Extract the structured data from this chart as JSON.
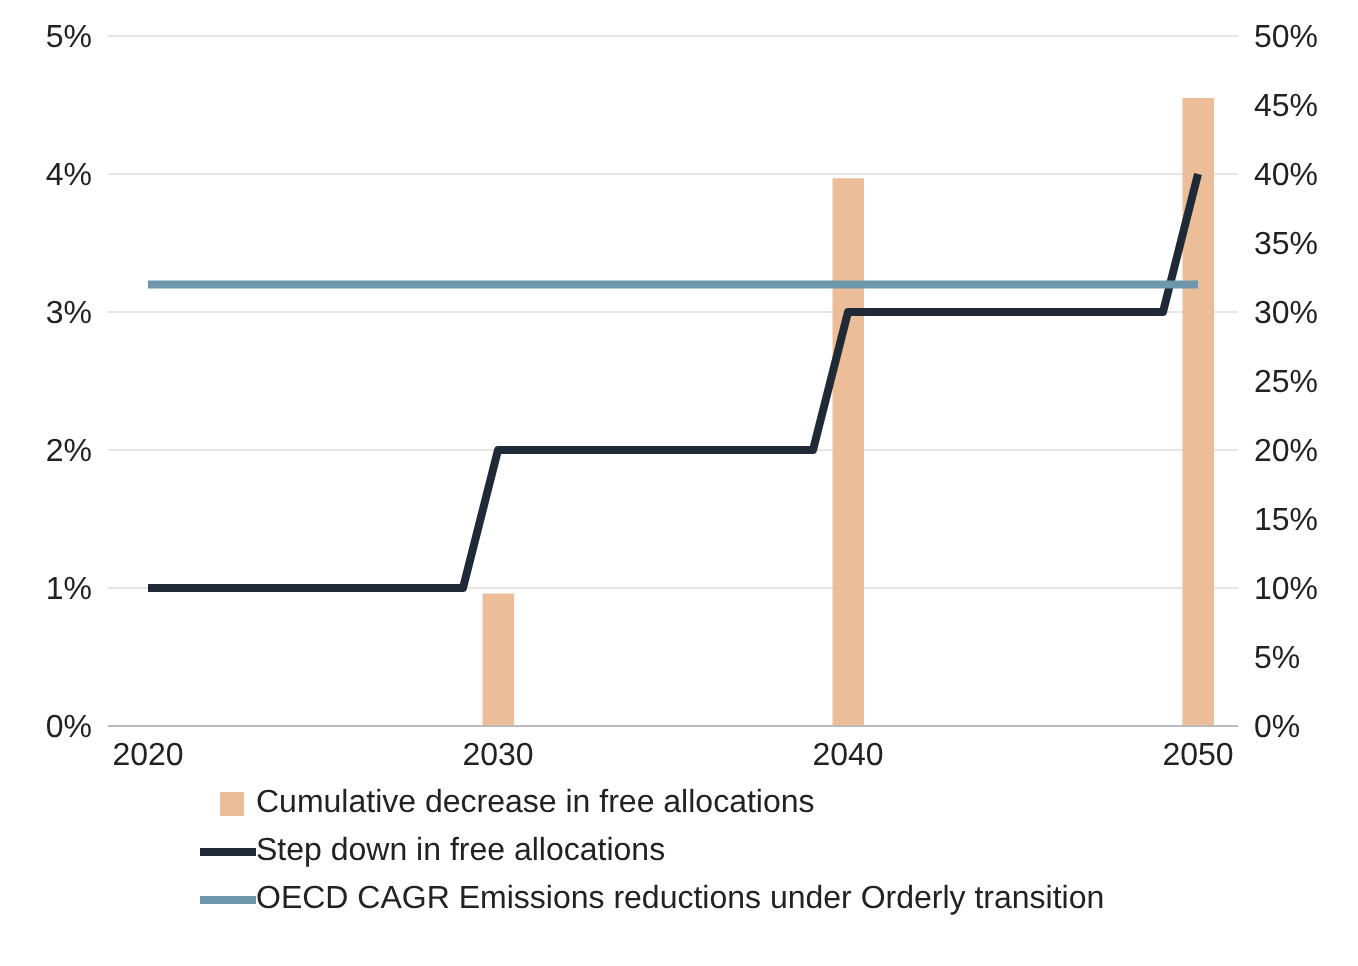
{
  "chart_data": {
    "type": "line",
    "xlim": [
      2020,
      2050
    ],
    "xticks": [
      2020,
      2030,
      2040,
      2050
    ],
    "ylim": [
      0,
      5
    ],
    "yticks": [
      {
        "value": 0,
        "label": "0%"
      },
      {
        "value": 1,
        "label": "1%"
      },
      {
        "value": 2,
        "label": "2%"
      },
      {
        "value": 3,
        "label": "3%"
      },
      {
        "value": 4,
        "label": "4%"
      },
      {
        "value": 5,
        "label": "5%"
      }
    ],
    "y2lim": [
      0,
      50
    ],
    "y2ticks": [
      {
        "value": 0,
        "label": "0%"
      },
      {
        "value": 5,
        "label": "5%"
      },
      {
        "value": 10,
        "label": "10%"
      },
      {
        "value": 15,
        "label": "15%"
      },
      {
        "value": 20,
        "label": "20%"
      },
      {
        "value": 25,
        "label": "25%"
      },
      {
        "value": 30,
        "label": "30%"
      },
      {
        "value": 35,
        "label": "35%"
      },
      {
        "value": 40,
        "label": "40%"
      },
      {
        "value": 45,
        "label": "45%"
      },
      {
        "value": 50,
        "label": "50%"
      }
    ],
    "grid": "y",
    "legend": "bottom",
    "marker": "none",
    "line_style": "solid",
    "series": [
      {
        "name": "Cumulative decrease in free allocations",
        "type": "bar",
        "axis": "y2",
        "color": "#ebbd98",
        "x": [
          2030,
          2040,
          2050
        ],
        "values": [
          9.6,
          39.7,
          45.5
        ]
      },
      {
        "name": "Step down in free allocations",
        "type": "line",
        "color": "#1f2a36",
        "x": [
          2020,
          2029,
          2030,
          2039,
          2040,
          2049,
          2050
        ],
        "values": [
          1,
          1,
          2,
          2,
          3,
          3,
          4
        ]
      },
      {
        "name": "OECD CAGR Emissions reductions under Orderly transition",
        "color": "#6f97ab",
        "x": [
          2020,
          2050
        ],
        "values": [
          3.2,
          3.2
        ]
      }
    ]
  }
}
